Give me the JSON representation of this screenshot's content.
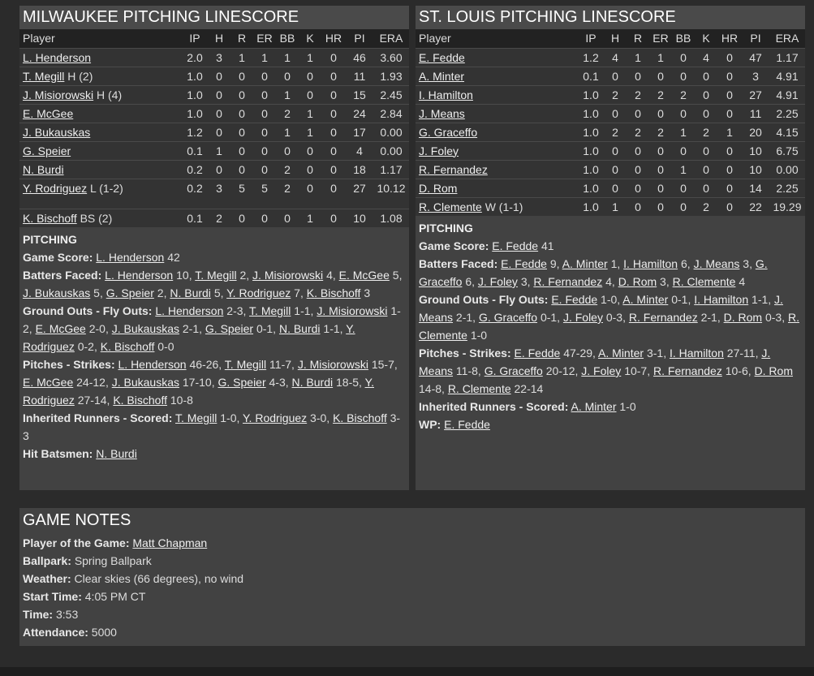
{
  "columns": [
    "Player",
    "IP",
    "H",
    "R",
    "ER",
    "BB",
    "K",
    "HR",
    "PI",
    "ERA"
  ],
  "milwaukee": {
    "title": "MILWAUKEE PITCHING LINESCORE",
    "rows": [
      {
        "player": "L. Henderson",
        "note": "",
        "stats": [
          "2.0",
          "3",
          "1",
          "1",
          "1",
          "1",
          "0",
          "46",
          "3.60"
        ]
      },
      {
        "player": "T. Megill",
        "note": "H (2)",
        "stats": [
          "1.0",
          "0",
          "0",
          "0",
          "0",
          "0",
          "0",
          "11",
          "1.93"
        ]
      },
      {
        "player": "J. Misiorowski",
        "note": "H (4)",
        "stats": [
          "1.0",
          "0",
          "0",
          "0",
          "1",
          "0",
          "0",
          "15",
          "2.45"
        ]
      },
      {
        "player": "E. McGee",
        "note": "",
        "stats": [
          "1.0",
          "0",
          "0",
          "0",
          "2",
          "1",
          "0",
          "24",
          "2.84"
        ]
      },
      {
        "player": "J. Bukauskas",
        "note": "",
        "stats": [
          "1.2",
          "0",
          "0",
          "0",
          "1",
          "1",
          "0",
          "17",
          "0.00"
        ]
      },
      {
        "player": "G. Speier",
        "note": "",
        "stats": [
          "0.1",
          "1",
          "0",
          "0",
          "0",
          "0",
          "0",
          "4",
          "0.00"
        ]
      },
      {
        "player": "N. Burdi",
        "note": "",
        "stats": [
          "0.2",
          "0",
          "0",
          "0",
          "2",
          "0",
          "0",
          "18",
          "1.17"
        ]
      },
      {
        "player": "Y. Rodriguez",
        "note": "L (1-2)",
        "stats": [
          "0.2",
          "3",
          "5",
          "5",
          "2",
          "0",
          "0",
          "27",
          "10.12"
        ],
        "tall": true
      },
      {
        "player": "K. Bischoff",
        "note": "BS (2)",
        "stats": [
          "0.1",
          "2",
          "0",
          "0",
          "0",
          "1",
          "0",
          "10",
          "1.08"
        ]
      }
    ],
    "section_title": "PITCHING",
    "lines": [
      {
        "label": "Game Score:",
        "parts": [
          {
            "player": "L. Henderson",
            "value": "42"
          }
        ]
      },
      {
        "label": "Batters Faced:",
        "parts": [
          {
            "player": "L. Henderson",
            "value": "10"
          },
          {
            "player": "T. Megill",
            "value": "2"
          },
          {
            "player": "J. Misiorowski",
            "value": "4"
          },
          {
            "player": "E. McGee",
            "value": "5"
          },
          {
            "player": "J. Bukauskas",
            "value": "5"
          },
          {
            "player": "G. Speier",
            "value": "2"
          },
          {
            "player": "N. Burdi",
            "value": "5"
          },
          {
            "player": "Y. Rodriguez",
            "value": "7"
          },
          {
            "player": "K. Bischoff",
            "value": "3"
          }
        ]
      },
      {
        "label": "Ground Outs - Fly Outs:",
        "parts": [
          {
            "player": "L. Henderson",
            "value": "2-3"
          },
          {
            "player": "T. Megill",
            "value": "1-1"
          },
          {
            "player": "J. Misiorowski",
            "value": "1-2"
          },
          {
            "player": "E. McGee",
            "value": "2-0"
          },
          {
            "player": "J. Bukauskas",
            "value": "2-1"
          },
          {
            "player": "G. Speier",
            "value": "0-1"
          },
          {
            "player": "N. Burdi",
            "value": "1-1"
          },
          {
            "player": "Y. Rodriguez",
            "value": "0-2"
          },
          {
            "player": "K. Bischoff",
            "value": "0-0"
          }
        ]
      },
      {
        "label": "Pitches - Strikes:",
        "parts": [
          {
            "player": "L. Henderson",
            "value": "46-26"
          },
          {
            "player": "T. Megill",
            "value": "11-7"
          },
          {
            "player": "J. Misiorowski",
            "value": "15-7"
          },
          {
            "player": "E. McGee",
            "value": "24-12"
          },
          {
            "player": "J. Bukauskas",
            "value": "17-10"
          },
          {
            "player": "G. Speier",
            "value": "4-3"
          },
          {
            "player": "N. Burdi",
            "value": "18-5"
          },
          {
            "player": "Y. Rodriguez",
            "value": "27-14"
          },
          {
            "player": "K. Bischoff",
            "value": "10-8"
          }
        ]
      },
      {
        "label": "Inherited Runners - Scored:",
        "parts": [
          {
            "player": "T. Megill",
            "value": "1-0"
          },
          {
            "player": "Y. Rodriguez",
            "value": "3-0"
          },
          {
            "player": "K. Bischoff",
            "value": "3-3"
          }
        ]
      },
      {
        "label": "Hit Batsmen:",
        "parts": [
          {
            "player": "N. Burdi",
            "value": ""
          }
        ]
      }
    ]
  },
  "stlouis": {
    "title": "ST. LOUIS PITCHING LINESCORE",
    "rows": [
      {
        "player": "E. Fedde",
        "note": "",
        "stats": [
          "1.2",
          "4",
          "1",
          "1",
          "0",
          "4",
          "0",
          "47",
          "1.17"
        ]
      },
      {
        "player": "A. Minter",
        "note": "",
        "stats": [
          "0.1",
          "0",
          "0",
          "0",
          "0",
          "0",
          "0",
          "3",
          "4.91"
        ]
      },
      {
        "player": "I. Hamilton",
        "note": "",
        "stats": [
          "1.0",
          "2",
          "2",
          "2",
          "2",
          "0",
          "0",
          "27",
          "4.91"
        ]
      },
      {
        "player": "J. Means",
        "note": "",
        "stats": [
          "1.0",
          "0",
          "0",
          "0",
          "0",
          "0",
          "0",
          "11",
          "2.25"
        ]
      },
      {
        "player": "G. Graceffo",
        "note": "",
        "stats": [
          "1.0",
          "2",
          "2",
          "2",
          "1",
          "2",
          "1",
          "20",
          "4.15"
        ]
      },
      {
        "player": "J. Foley",
        "note": "",
        "stats": [
          "1.0",
          "0",
          "0",
          "0",
          "0",
          "0",
          "0",
          "10",
          "6.75"
        ]
      },
      {
        "player": "R. Fernandez",
        "note": "",
        "stats": [
          "1.0",
          "0",
          "0",
          "0",
          "1",
          "0",
          "0",
          "10",
          "0.00"
        ]
      },
      {
        "player": "D. Rom",
        "note": "",
        "stats": [
          "1.0",
          "0",
          "0",
          "0",
          "0",
          "0",
          "0",
          "14",
          "2.25"
        ]
      },
      {
        "player": "R. Clemente",
        "note": "W (1-1)",
        "stats": [
          "1.0",
          "1",
          "0",
          "0",
          "0",
          "2",
          "0",
          "22",
          "19.29"
        ]
      }
    ],
    "section_title": "PITCHING",
    "lines": [
      {
        "label": "Game Score:",
        "parts": [
          {
            "player": "E. Fedde",
            "value": "41"
          }
        ]
      },
      {
        "label": "Batters Faced:",
        "parts": [
          {
            "player": "E. Fedde",
            "value": "9"
          },
          {
            "player": "A. Minter",
            "value": "1"
          },
          {
            "player": "I. Hamilton",
            "value": "6"
          },
          {
            "player": "J. Means",
            "value": "3"
          },
          {
            "player": "G. Graceffo",
            "value": "6"
          },
          {
            "player": "J. Foley",
            "value": "3"
          },
          {
            "player": "R. Fernandez",
            "value": "4"
          },
          {
            "player": "D. Rom",
            "value": "3"
          },
          {
            "player": "R. Clemente",
            "value": "4"
          }
        ]
      },
      {
        "label": "Ground Outs - Fly Outs:",
        "parts": [
          {
            "player": "E. Fedde",
            "value": "1-0"
          },
          {
            "player": "A. Minter",
            "value": "0-1"
          },
          {
            "player": "I. Hamilton",
            "value": "1-1"
          },
          {
            "player": "J. Means",
            "value": "2-1"
          },
          {
            "player": "G. Graceffo",
            "value": "0-1"
          },
          {
            "player": "J. Foley",
            "value": "0-3"
          },
          {
            "player": "R. Fernandez",
            "value": "2-1"
          },
          {
            "player": "D. Rom",
            "value": "0-3"
          },
          {
            "player": "R. Clemente",
            "value": "1-0"
          }
        ]
      },
      {
        "label": "Pitches - Strikes:",
        "parts": [
          {
            "player": "E. Fedde",
            "value": "47-29"
          },
          {
            "player": "A. Minter",
            "value": "3-1"
          },
          {
            "player": "I. Hamilton",
            "value": "27-11"
          },
          {
            "player": "J. Means",
            "value": "11-8"
          },
          {
            "player": "G. Graceffo",
            "value": "20-12"
          },
          {
            "player": "J. Foley",
            "value": "10-7"
          },
          {
            "player": "R. Fernandez",
            "value": "10-6"
          },
          {
            "player": "D. Rom",
            "value": "14-8"
          },
          {
            "player": "R. Clemente",
            "value": "22-14"
          }
        ]
      },
      {
        "label": "Inherited Runners - Scored:",
        "parts": [
          {
            "player": "A. Minter",
            "value": "1-0"
          }
        ]
      },
      {
        "label": "WP:",
        "parts": [
          {
            "player": "E. Fedde",
            "value": ""
          }
        ]
      }
    ]
  },
  "game_notes": {
    "title": "GAME NOTES",
    "items": [
      {
        "label": "Player of the Game:",
        "value": "Matt Chapman",
        "link": true
      },
      {
        "label": "Ballpark:",
        "value": "Spring Ballpark"
      },
      {
        "label": "Weather:",
        "value": "Clear skies (66 degrees), no wind"
      },
      {
        "label": "Start Time:",
        "value": "4:05 PM CT"
      },
      {
        "label": "Time:",
        "value": "3:53"
      },
      {
        "label": "Attendance:",
        "value": "5000"
      }
    ]
  }
}
